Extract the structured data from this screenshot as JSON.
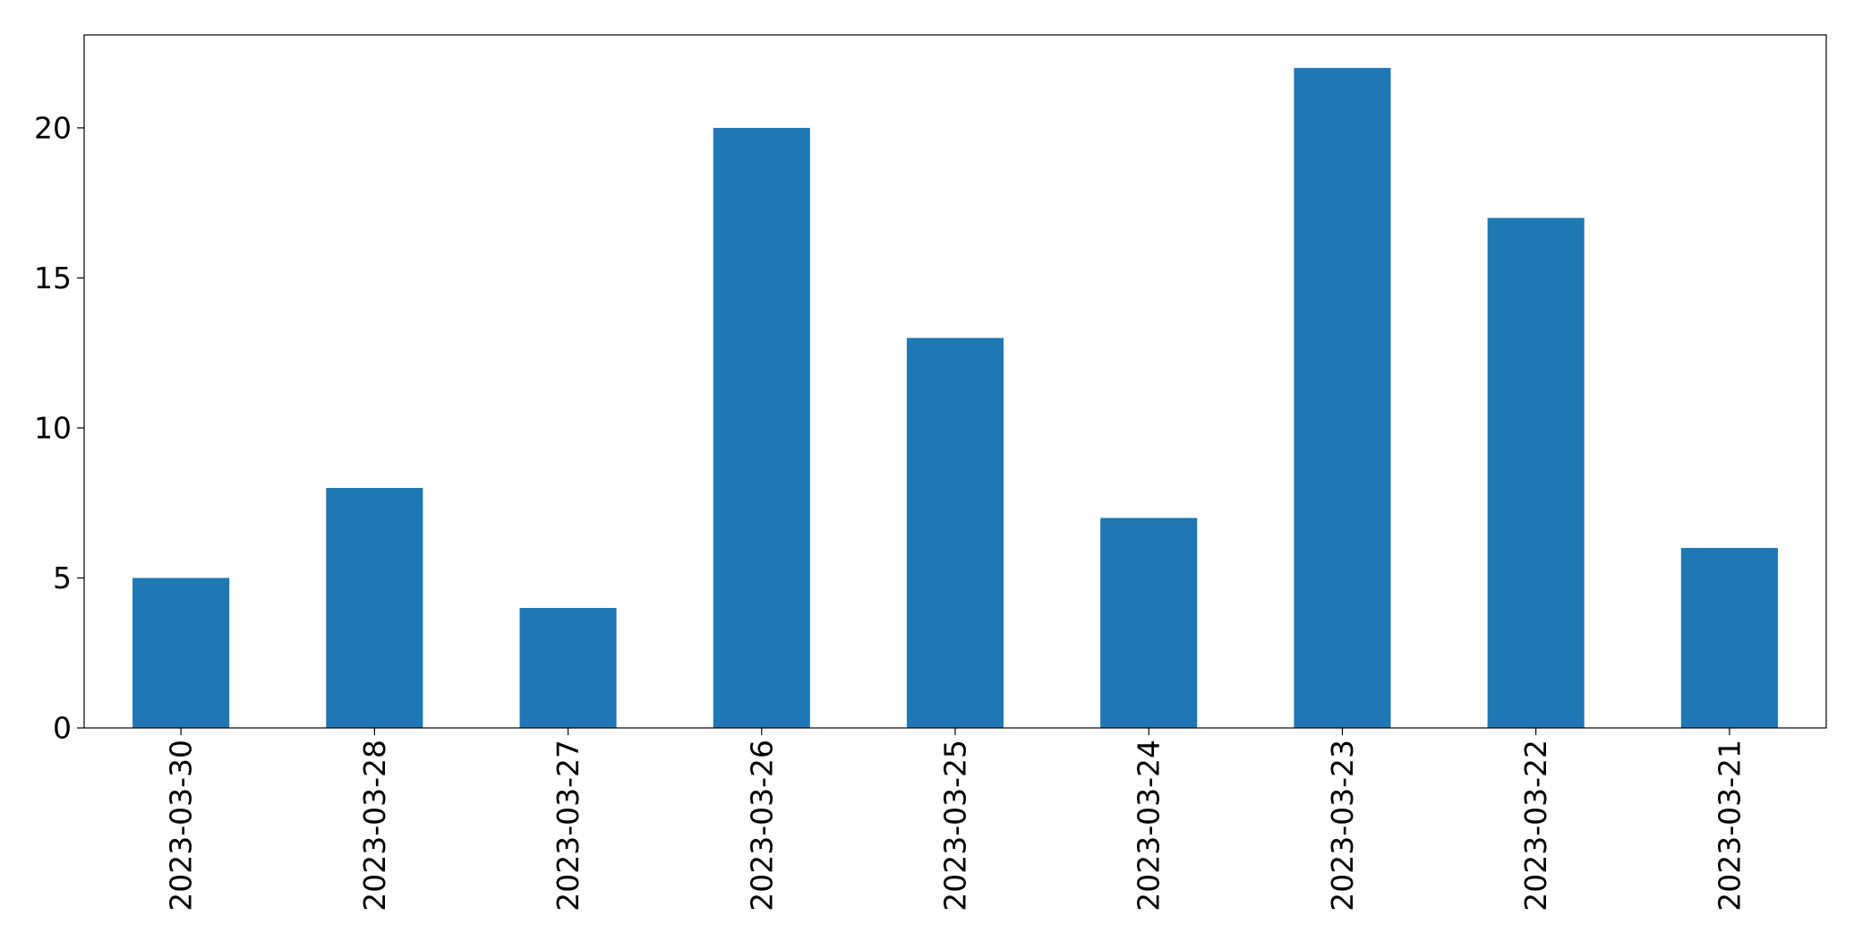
{
  "chart_data": {
    "type": "bar",
    "title": "",
    "xlabel": "",
    "ylabel": "",
    "categories": [
      "2023-03-30",
      "2023-03-28",
      "2023-03-27",
      "2023-03-26",
      "2023-03-25",
      "2023-03-24",
      "2023-03-23",
      "2023-03-22",
      "2023-03-21"
    ],
    "values": [
      5,
      8,
      4,
      20,
      13,
      7,
      22,
      17,
      6
    ],
    "ylim": [
      0,
      23.1
    ],
    "yticks": [
      0,
      5,
      10,
      15,
      20
    ],
    "bar_color": "#1f77b4",
    "grid": false,
    "legend": "none"
  }
}
